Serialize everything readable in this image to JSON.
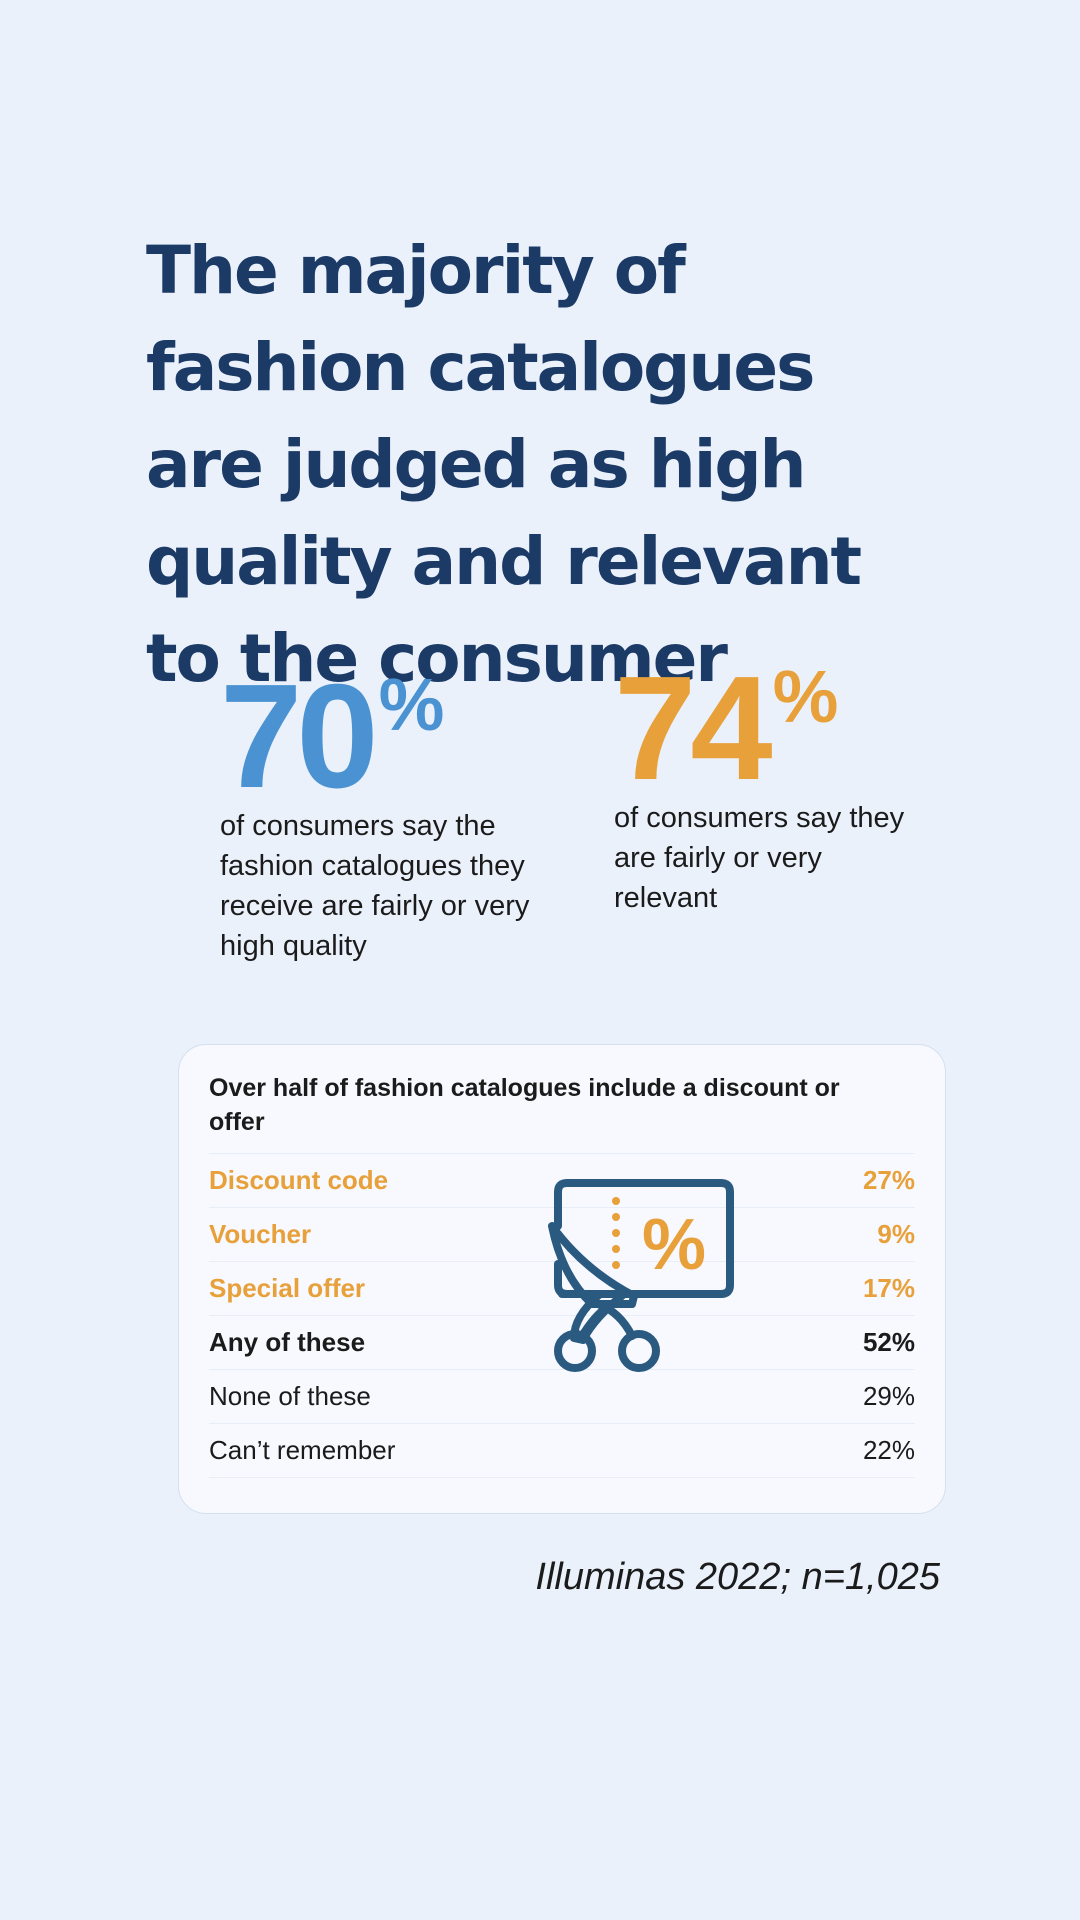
{
  "headline": "The majority of fashion catalogues are judged as high quality and relevant to the consumer",
  "stats": [
    {
      "number": "70",
      "unit": "%",
      "description": "of consumers say the fashion catalogues they receive are fairly or very high quality",
      "color": "#4a92d1"
    },
    {
      "number": "74",
      "unit": "%",
      "description": "of consumers say they are fairly or very relevant",
      "color": "#e8a03a"
    }
  ],
  "offers": {
    "title": "Over half of fashion catalogues include a discount or offer",
    "rows": [
      {
        "label": "Discount code",
        "value": "27%"
      },
      {
        "label": "Voucher",
        "value": "9%"
      },
      {
        "label": "Special offer",
        "value": "17%"
      },
      {
        "label": "Any of these",
        "value": "52%"
      },
      {
        "label": "None of these",
        "value": "29%"
      },
      {
        "label": "Can’t remember",
        "value": "22%"
      }
    ],
    "icon": "coupon-scissors-icon",
    "icon_percent": "%"
  },
  "source": "Illuminas 2022; n=1,025",
  "colors": {
    "background": "#eaf1fb",
    "headline": "#1c3a66",
    "accent_blue": "#4a92d1",
    "accent_orange": "#e8a03a",
    "icon_stroke": "#2a5a80"
  }
}
